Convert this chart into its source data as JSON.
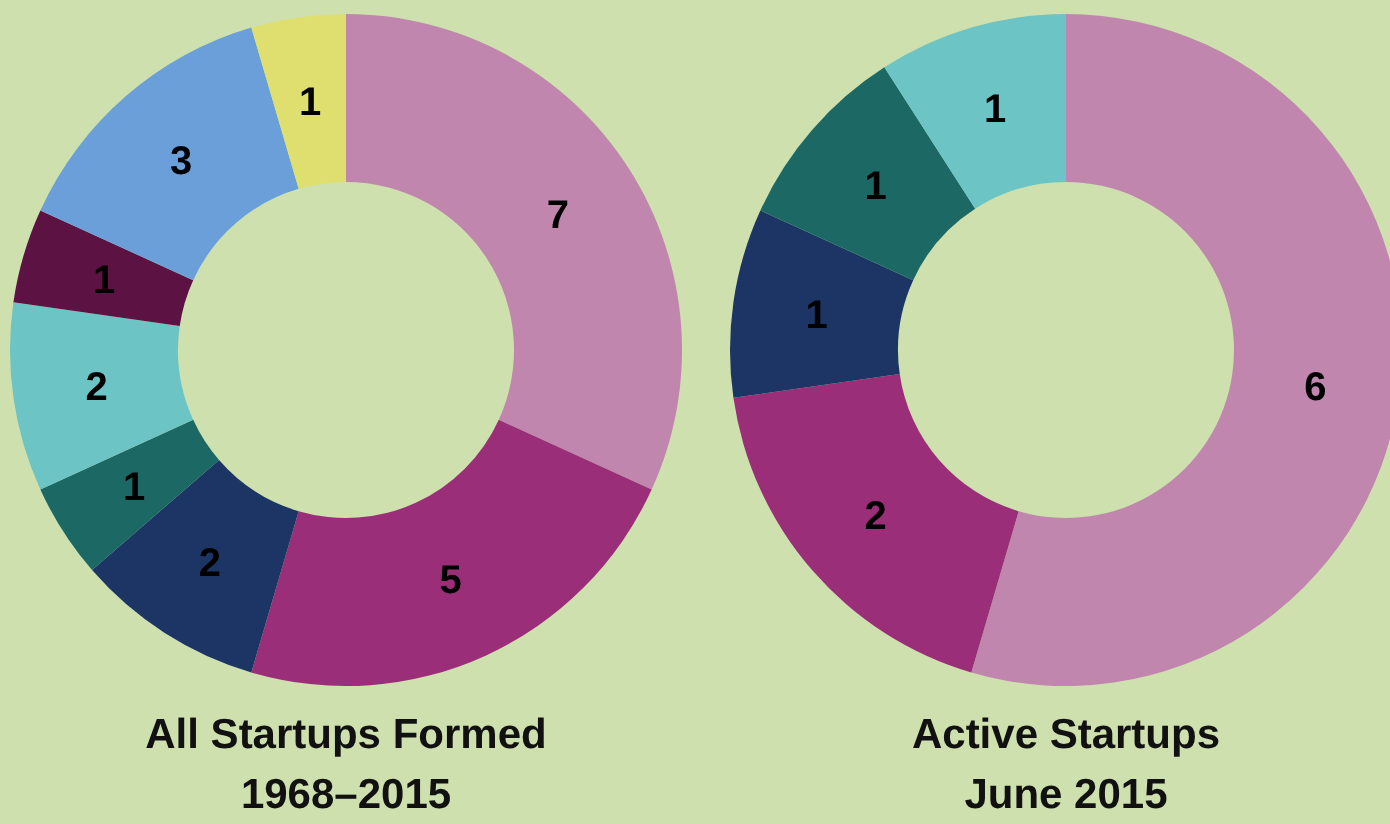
{
  "chart_data": [
    {
      "type": "donut",
      "title": "All Startups Formed\n1968–2015",
      "categories": [
        null,
        null,
        null,
        null,
        null,
        null,
        null,
        null
      ],
      "values": [
        7,
        5,
        2,
        1,
        2,
        1,
        3,
        1
      ],
      "colors": [
        "#c186ae",
        "#9a2e78",
        "#1d3565",
        "#1b6864",
        "#6cc4c4",
        "#5d1244",
        "#6a9fd9",
        "#dfdf70"
      ],
      "data_labels": true
    },
    {
      "type": "donut",
      "title": "Active Startups\nJune 2015",
      "categories": [
        null,
        null,
        null,
        null,
        null
      ],
      "values": [
        6,
        2,
        1,
        1,
        1
      ],
      "colors": [
        "#c186ae",
        "#9a2e78",
        "#1d3565",
        "#1b6864",
        "#6cc4c4"
      ],
      "data_labels": true
    }
  ]
}
